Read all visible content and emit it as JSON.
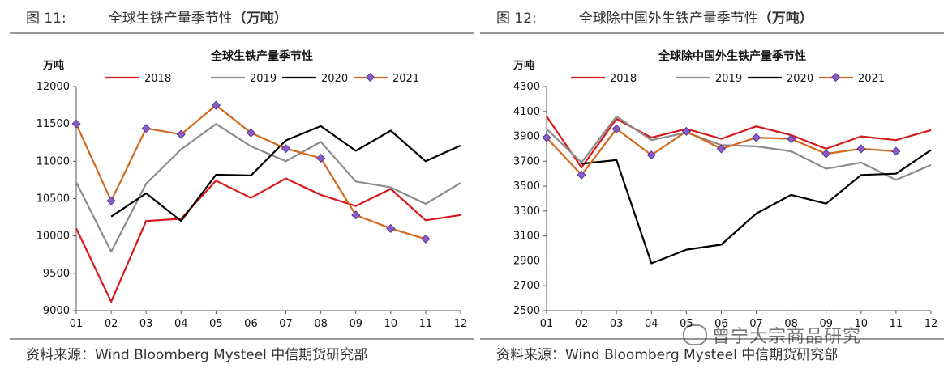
{
  "figures": [
    {
      "label": "图 11:",
      "title_plain": "全球生铁产量季节性",
      "title_bold": "（万吨）",
      "source": "资料来源：Wind Bloomberg Mysteel 中信期货研究部"
    },
    {
      "label": "图 12:",
      "title_plain": "全球除中国外生铁产量季节性",
      "title_bold": "（万吨）",
      "source": "资料来源：Wind Bloomberg Mysteel 中信期货研究部"
    }
  ],
  "watermark": "曾宁大宗商品研究",
  "colors": {
    "2018": "#d7191c",
    "2019": "#8c8c8c",
    "2020": "#000000",
    "2021": "#d2691e",
    "marker": "#8a5cc7"
  },
  "chart_data": [
    {
      "type": "line",
      "title": "全球生铁产量季节性",
      "ylabel": "万吨",
      "xlabel": "",
      "ylim": [
        9000,
        12000
      ],
      "yticks": [
        9000,
        9500,
        10000,
        10500,
        11000,
        11500,
        12000
      ],
      "categories": [
        "01",
        "02",
        "03",
        "04",
        "05",
        "06",
        "07",
        "08",
        "09",
        "10",
        "11",
        "12"
      ],
      "legend_position": "top-center",
      "series": [
        {
          "name": "2018",
          "values": [
            10100,
            9120,
            10200,
            10230,
            10740,
            10510,
            10770,
            10550,
            10400,
            10630,
            10210,
            10280
          ]
        },
        {
          "name": "2019",
          "values": [
            10720,
            9790,
            10700,
            11160,
            11500,
            11200,
            11000,
            11260,
            10730,
            10650,
            10430,
            10710
          ]
        },
        {
          "name": "2020",
          "values": [
            null,
            10260,
            10570,
            10200,
            10820,
            10810,
            11280,
            11470,
            11140,
            11410,
            11000,
            11210
          ]
        },
        {
          "name": "2021",
          "values": [
            11500,
            10470,
            11440,
            11360,
            11750,
            11380,
            11170,
            11040,
            10280,
            10100,
            9960,
            null
          ]
        }
      ]
    },
    {
      "type": "line",
      "title": "全球除中国外生铁产量季节性",
      "ylabel": "万吨",
      "xlabel": "",
      "ylim": [
        2500,
        4300
      ],
      "yticks": [
        2500,
        2700,
        2900,
        3100,
        3300,
        3500,
        3700,
        3900,
        4100,
        4300
      ],
      "categories": [
        "01",
        "02",
        "03",
        "04",
        "05",
        "06",
        "07",
        "08",
        "09",
        "10",
        "11",
        "12"
      ],
      "legend_position": "top-center",
      "series": [
        {
          "name": "2018",
          "values": [
            4060,
            3650,
            4040,
            3890,
            3960,
            3880,
            3980,
            3910,
            3800,
            3900,
            3870,
            3950
          ]
        },
        {
          "name": "2019",
          "values": [
            3960,
            3690,
            4060,
            3870,
            3930,
            3830,
            3820,
            3780,
            3640,
            3690,
            3550,
            3670
          ]
        },
        {
          "name": "2020",
          "values": [
            null,
            3680,
            3710,
            2880,
            2990,
            3030,
            3280,
            3430,
            3360,
            3590,
            3600,
            3790
          ]
        },
        {
          "name": "2021",
          "values": [
            3890,
            3590,
            3960,
            3750,
            3940,
            3800,
            3890,
            3880,
            3760,
            3800,
            3780,
            null
          ]
        }
      ]
    }
  ]
}
